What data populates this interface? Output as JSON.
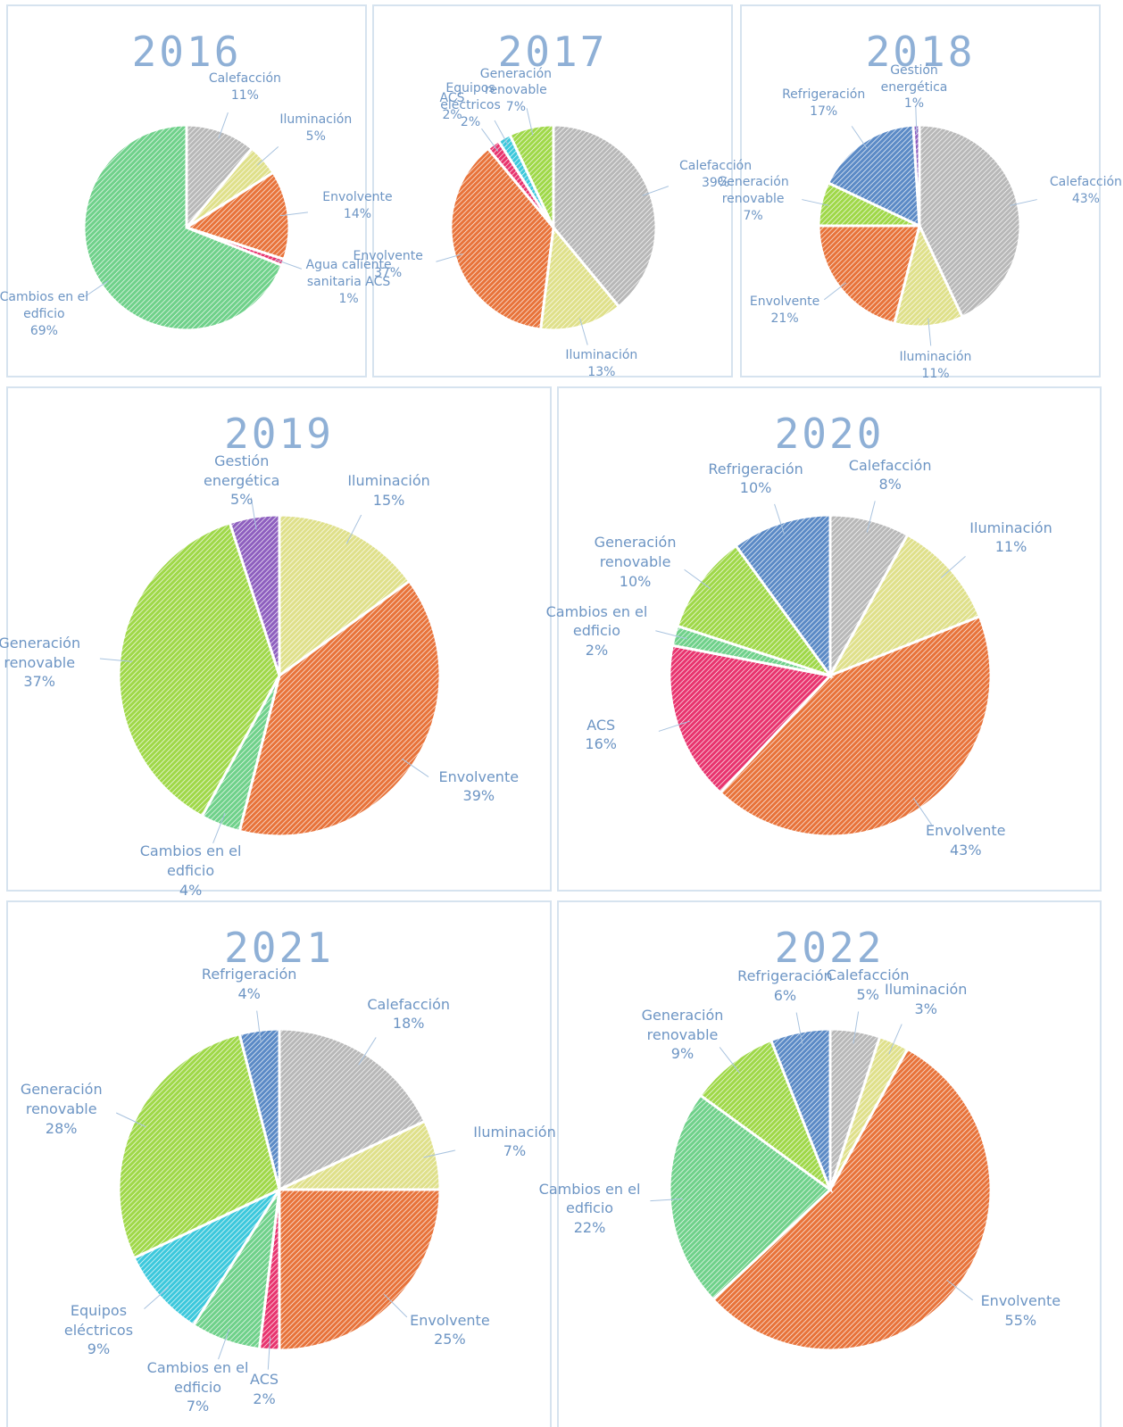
{
  "chart_data": [
    {
      "type": "pie",
      "title": "2016",
      "categories": [
        "Calefacción",
        "Iluminación",
        "Envolvente",
        "Agua caliente sanitaria ACS",
        "Cambios en el edficio"
      ],
      "values": [
        11,
        5,
        14,
        1,
        69
      ],
      "value_labels": [
        "11%",
        "5%",
        "14%",
        "1%",
        "69%"
      ],
      "colors": [
        "#b8b8b8",
        "#dfe08a",
        "#e8733a",
        "#e8336e",
        "#6fd18a"
      ]
    },
    {
      "type": "pie",
      "title": "2017",
      "categories": [
        "Calefacción",
        "Iluminación",
        "Envolvente",
        "ACS",
        "Equipos eléctricos",
        "Generación renovable"
      ],
      "values": [
        39,
        13,
        37,
        2,
        2,
        7
      ],
      "value_labels": [
        "39%",
        "13%",
        "37%",
        "2%",
        "2%",
        "7%"
      ],
      "colors": [
        "#b8b8b8",
        "#dfe08a",
        "#e8733a",
        "#e8336e",
        "#3cc8dc",
        "#9fd848"
      ]
    },
    {
      "type": "pie",
      "title": "2018",
      "categories": [
        "Calefacción",
        "Iluminación",
        "Envolvente",
        "Generación renovable",
        "Refrigeración",
        "Gestión energética"
      ],
      "values": [
        43,
        11,
        21,
        7,
        17,
        1
      ],
      "value_labels": [
        "43%",
        "11%",
        "21%",
        "7%",
        "17%",
        "1%"
      ],
      "colors": [
        "#b8b8b8",
        "#dfe08a",
        "#e8733a",
        "#9fd848",
        "#5b8ac6",
        "#8e5fbf"
      ]
    },
    {
      "type": "pie",
      "title": "2019",
      "categories": [
        "Iluminación",
        "Envolvente",
        "Cambios en el edficio",
        "Generación renovable",
        "Gestión energética"
      ],
      "values": [
        15,
        39,
        4,
        37,
        5
      ],
      "value_labels": [
        "15%",
        "39%",
        "4%",
        "37%",
        "5%"
      ],
      "colors": [
        "#dfe08a",
        "#e8733a",
        "#6fd18a",
        "#9fd848",
        "#8e5fbf"
      ]
    },
    {
      "type": "pie",
      "title": "2020",
      "categories": [
        "Calefacción",
        "Iluminación",
        "Envolvente",
        "ACS",
        "Cambios en el edficio",
        "Generación renovable",
        "Refrigeración"
      ],
      "values": [
        8,
        11,
        43,
        16,
        2,
        10,
        10
      ],
      "value_labels": [
        "8%",
        "11%",
        "43%",
        "16%",
        "2%",
        "10%",
        "10%"
      ],
      "colors": [
        "#b8b8b8",
        "#dfe08a",
        "#e8733a",
        "#e8336e",
        "#6fd18a",
        "#9fd848",
        "#5b8ac6"
      ]
    },
    {
      "type": "pie",
      "title": "2021",
      "categories": [
        "Calefacción",
        "Iluminación",
        "Envolvente",
        "ACS",
        "Cambios en el edficio",
        "Equipos eléctricos",
        "Generación renovable",
        "Refrigeración"
      ],
      "values": [
        18,
        7,
        25,
        2,
        7,
        9,
        28,
        4
      ],
      "value_labels": [
        "18%",
        "7%",
        "25%",
        "2%",
        "7%",
        "9%",
        "28%",
        "4%"
      ],
      "colors": [
        "#b8b8b8",
        "#dfe08a",
        "#e8733a",
        "#e8336e",
        "#6fd18a",
        "#3cc8dc",
        "#9fd848",
        "#5b8ac6"
      ]
    },
    {
      "type": "pie",
      "title": "2022",
      "categories": [
        "Calefacción",
        "Iluminación",
        "Envolvente",
        "Cambios en el edficio",
        "Generación renovable",
        "Refrigeración"
      ],
      "values": [
        5,
        3,
        55,
        22,
        9,
        6
      ],
      "value_labels": [
        "5%",
        "3%",
        "55%",
        "22%",
        "9%",
        "6%"
      ],
      "colors": [
        "#b8b8b8",
        "#dfe08a",
        "#e8733a",
        "#6fd18a",
        "#9fd848",
        "#5b8ac6"
      ]
    }
  ]
}
